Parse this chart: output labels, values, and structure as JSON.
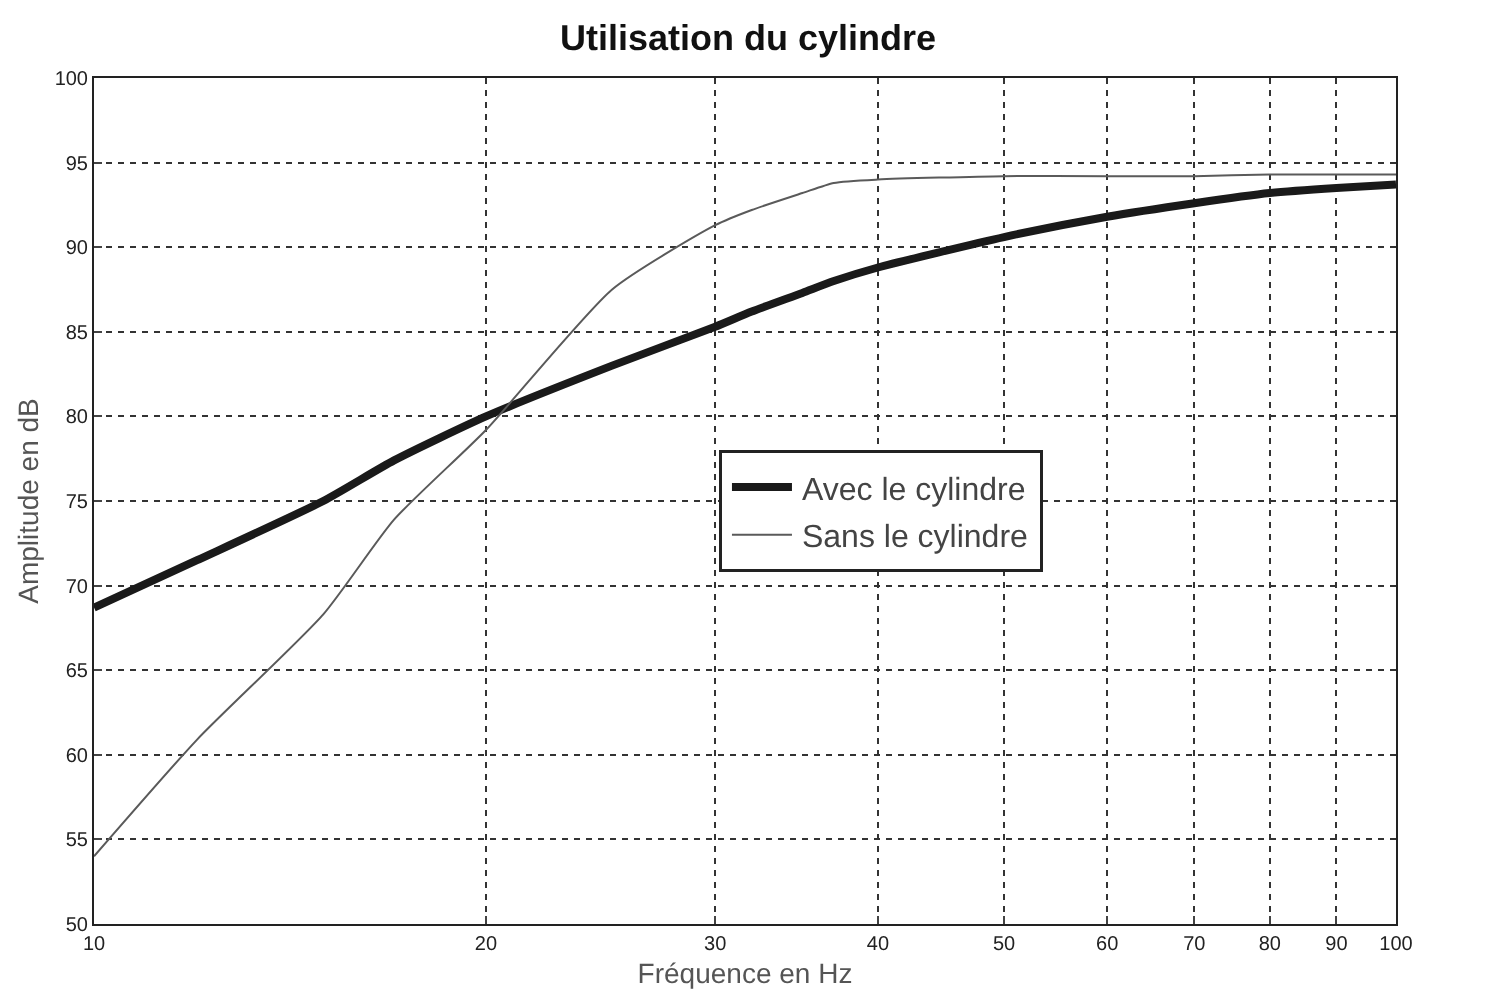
{
  "chart_data": {
    "type": "line",
    "title": "Utilisation du cylindre",
    "xlabel": "Fréquence en Hz",
    "ylabel": "Amplitude en dB",
    "log": "x",
    "xlim": [
      10,
      100
    ],
    "xticks": [
      10,
      20,
      30,
      40,
      50,
      60,
      70,
      80,
      90,
      100
    ],
    "ylim": [
      50,
      100
    ],
    "yticks": [
      50,
      55,
      60,
      65,
      70,
      75,
      80,
      85,
      90,
      95,
      100
    ],
    "grid": true,
    "legend": "right",
    "line_style": "solid",
    "x": [
      10,
      12,
      15,
      17,
      20,
      25,
      30,
      32,
      35,
      37,
      40,
      50,
      60,
      70,
      80,
      90,
      100
    ],
    "series": [
      {
        "name": "Avec le cylindre",
        "color": "#1a1a1a",
        "values": [
          68.7,
          71.5,
          75.0,
          77.4,
          80.0,
          83.0,
          85.3,
          86.2,
          87.3,
          88.0,
          88.8,
          90.6,
          91.8,
          92.6,
          93.2,
          93.5,
          93.7
        ]
      },
      {
        "name": "Sans le cylindre",
        "color": "#5a5a5a",
        "values": [
          54.0,
          60.9,
          68.3,
          73.9,
          79.2,
          87.5,
          91.3,
          92.2,
          93.2,
          93.8,
          94.0,
          94.2,
          94.2,
          94.2,
          94.3,
          94.3,
          94.3
        ]
      }
    ]
  }
}
